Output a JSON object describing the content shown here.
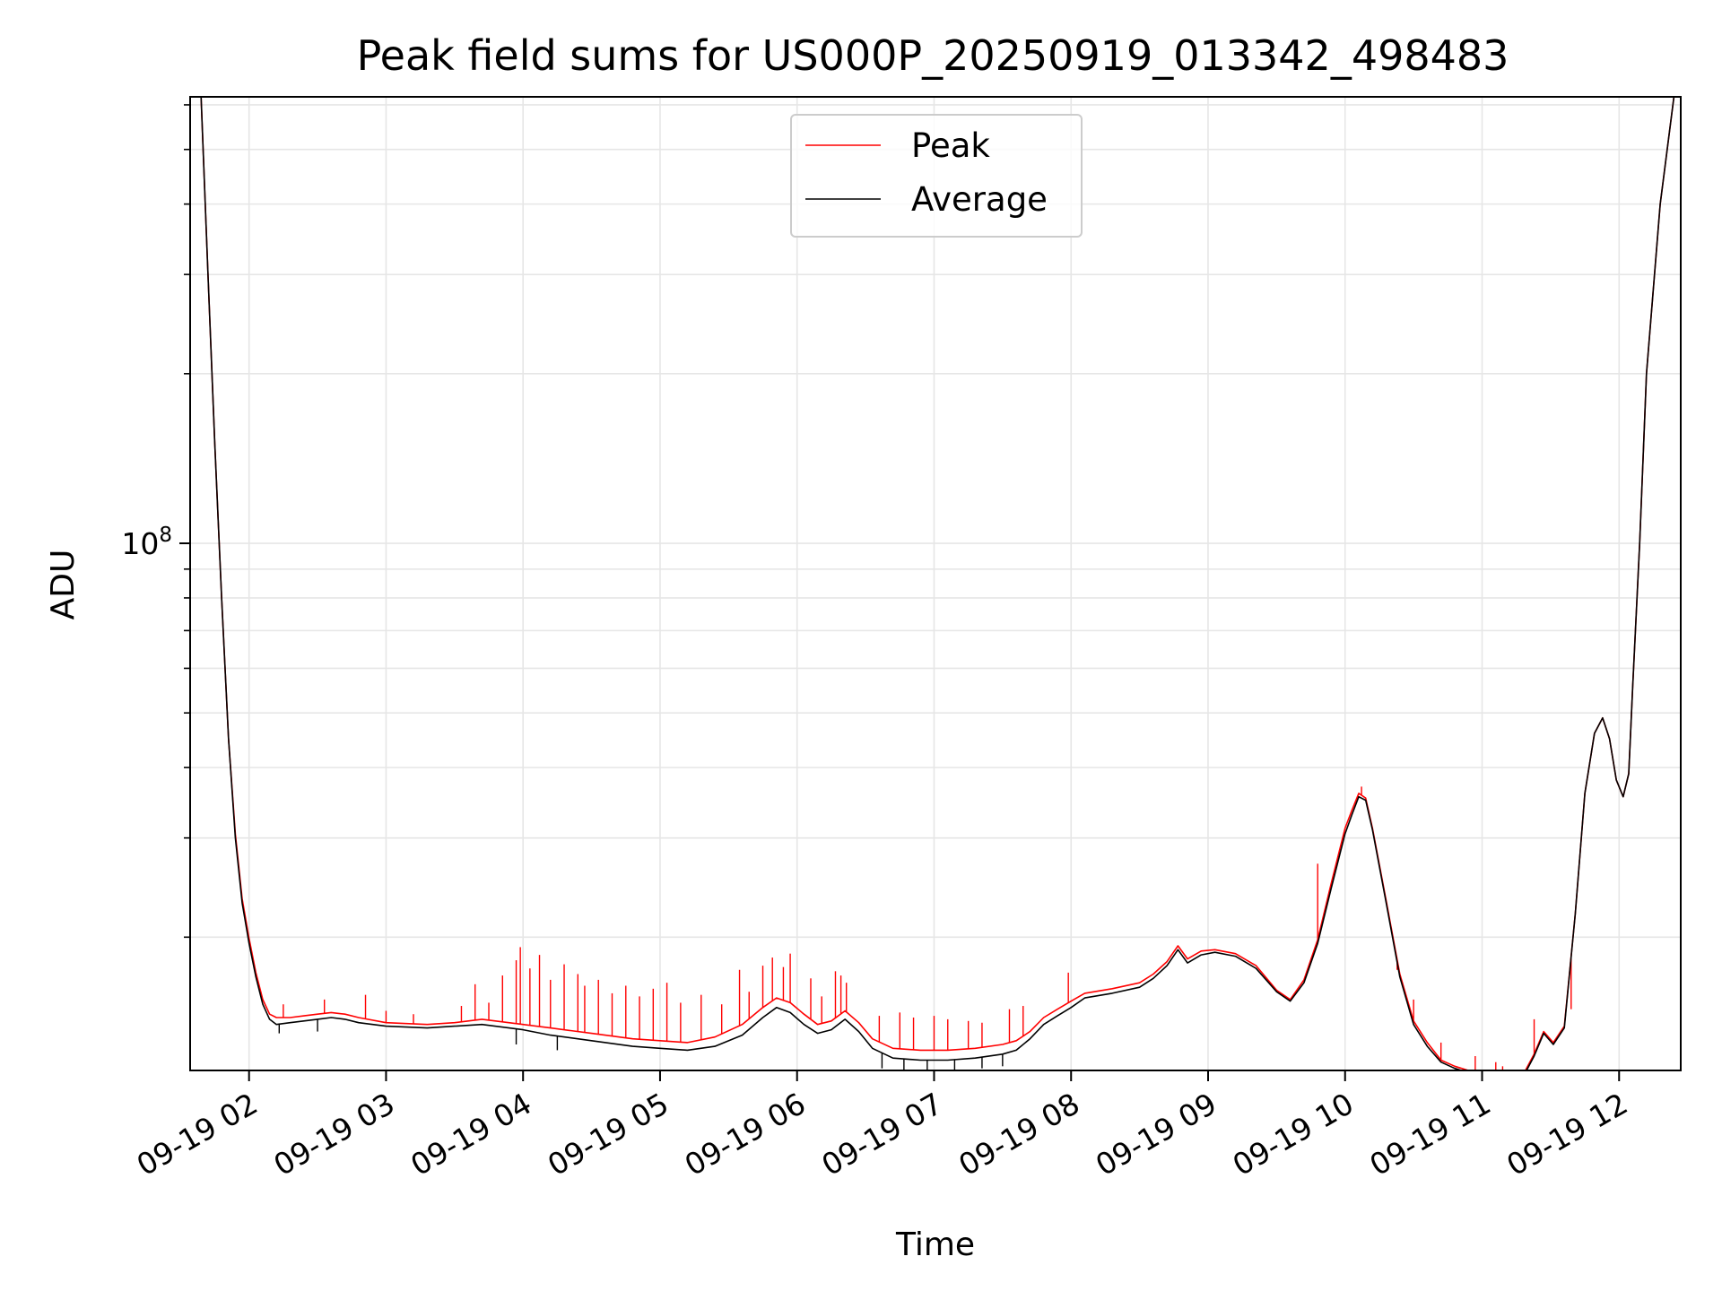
{
  "chart_data": {
    "type": "line",
    "title": "Peak field sums for US000P_20250919_013342_498483",
    "xlabel": "Time",
    "ylabel": "ADU",
    "yscale": "log",
    "ylim": [
      11600000.0,
      620000000.0
    ],
    "xlim_hours": [
      1.57,
      12.45
    ],
    "x_ticks": [
      {
        "hour": 2,
        "label": "09-19 02"
      },
      {
        "hour": 3,
        "label": "09-19 03"
      },
      {
        "hour": 4,
        "label": "09-19 04"
      },
      {
        "hour": 5,
        "label": "09-19 05"
      },
      {
        "hour": 6,
        "label": "09-19 06"
      },
      {
        "hour": 7,
        "label": "09-19 07"
      },
      {
        "hour": 8,
        "label": "09-19 08"
      },
      {
        "hour": 9,
        "label": "09-19 09"
      },
      {
        "hour": 10,
        "label": "09-19 10"
      },
      {
        "hour": 11,
        "label": "09-19 11"
      },
      {
        "hour": 12,
        "label": "09-19 12"
      }
    ],
    "y_major_ticks": [
      {
        "value": 100000000,
        "label_base": "10",
        "label_exp": "8"
      }
    ],
    "y_minor_ticks": [
      20000000,
      30000000,
      40000000,
      50000000,
      60000000,
      70000000,
      80000000,
      90000000,
      200000000,
      300000000,
      400000000,
      500000000,
      600000000
    ],
    "grid": true,
    "legend": {
      "position": "top-center",
      "entries": [
        {
          "name": "Peak",
          "color": "#ff0000"
        },
        {
          "name": "Average",
          "color": "#000000"
        }
      ]
    },
    "series": [
      {
        "name": "Average",
        "color": "#000000",
        "x_hours": [
          1.57,
          1.65,
          1.7,
          1.75,
          1.8,
          1.85,
          1.9,
          1.95,
          2.0,
          2.05,
          2.1,
          2.15,
          2.2,
          2.3,
          2.4,
          2.5,
          2.6,
          2.7,
          2.8,
          3.0,
          3.3,
          3.5,
          3.7,
          4.0,
          4.2,
          4.5,
          4.8,
          5.0,
          5.2,
          5.4,
          5.6,
          5.75,
          5.85,
          5.95,
          6.05,
          6.15,
          6.25,
          6.35,
          6.45,
          6.55,
          6.7,
          6.9,
          7.1,
          7.3,
          7.5,
          7.6,
          7.7,
          7.8,
          7.9,
          8.0,
          8.1,
          8.3,
          8.5,
          8.6,
          8.7,
          8.78,
          8.85,
          8.95,
          9.05,
          9.2,
          9.35,
          9.5,
          9.6,
          9.7,
          9.8,
          9.9,
          10.0,
          10.05,
          10.1,
          10.15,
          10.2,
          10.3,
          10.4,
          10.5,
          10.6,
          10.7,
          10.8,
          10.9,
          11.0,
          11.1,
          11.2,
          11.3,
          11.38,
          11.45,
          11.52,
          11.6,
          11.68,
          11.75,
          11.82,
          11.88,
          11.93,
          11.98,
          12.03,
          12.07,
          12.1,
          12.15,
          12.2,
          12.3,
          12.4,
          12.45
        ],
        "values": [
          620000000,
          620000000,
          300000000,
          150000000,
          80000000,
          45000000,
          30000000,
          23000000,
          19500000,
          17000000,
          15200000,
          14300000,
          14000000,
          14100000,
          14200000,
          14300000,
          14400000,
          14300000,
          14100000,
          13900000,
          13800000,
          13900000,
          14000000,
          13700000,
          13400000,
          13100000,
          12800000,
          12700000,
          12600000,
          12800000,
          13400000,
          14400000,
          15000000,
          14700000,
          14000000,
          13500000,
          13700000,
          14300000,
          13600000,
          12700000,
          12200000,
          12100000,
          12100000,
          12200000,
          12400000,
          12600000,
          13200000,
          14000000,
          14500000,
          15000000,
          15600000,
          15900000,
          16300000,
          16900000,
          17800000,
          19000000,
          18000000,
          18600000,
          18800000,
          18500000,
          17600000,
          16000000,
          15400000,
          16600000,
          19500000,
          24500000,
          30500000,
          33000000,
          35500000,
          35000000,
          31000000,
          23000000,
          17000000,
          14000000,
          12800000,
          12000000,
          11700000,
          11500000,
          11300000,
          11200000,
          11160000,
          11300000,
          12300000,
          13500000,
          12900000,
          13800000,
          22000000,
          36000000,
          46000000,
          49000000,
          45000000,
          38000000,
          35500000,
          39000000,
          56000000,
          100000000,
          200000000,
          400000000,
          620000000,
          620000000
        ]
      },
      {
        "name": "Peak",
        "color": "#ff0000",
        "x_hours": [
          1.57,
          1.65,
          1.7,
          1.75,
          1.8,
          1.85,
          1.9,
          1.95,
          2.0,
          2.05,
          2.1,
          2.15,
          2.2,
          2.3,
          2.4,
          2.5,
          2.6,
          2.7,
          2.8,
          3.0,
          3.3,
          3.5,
          3.7,
          4.0,
          4.2,
          4.5,
          4.8,
          5.0,
          5.2,
          5.4,
          5.6,
          5.75,
          5.85,
          5.95,
          6.05,
          6.15,
          6.25,
          6.35,
          6.45,
          6.55,
          6.7,
          6.9,
          7.1,
          7.3,
          7.5,
          7.6,
          7.7,
          7.8,
          7.9,
          8.0,
          8.1,
          8.3,
          8.5,
          8.6,
          8.7,
          8.78,
          8.85,
          8.95,
          9.05,
          9.2,
          9.35,
          9.5,
          9.6,
          9.7,
          9.8,
          9.9,
          10.0,
          10.05,
          10.1,
          10.15,
          10.2,
          10.3,
          10.4,
          10.5,
          10.6,
          10.7,
          10.8,
          10.9,
          11.0,
          11.1,
          11.2,
          11.3,
          11.38,
          11.45,
          11.52,
          11.6,
          11.68,
          11.75,
          11.82,
          11.88,
          11.93,
          11.98,
          12.03,
          12.07,
          12.1,
          12.15,
          12.2,
          12.3,
          12.4,
          12.45
        ],
        "values": [
          620000000,
          620000000,
          300000000,
          150000000,
          80000000,
          45000000,
          30500000,
          23400000,
          19900000,
          17300000,
          15500000,
          14600000,
          14400000,
          14400000,
          14500000,
          14600000,
          14700000,
          14600000,
          14400000,
          14100000,
          14000000,
          14100000,
          14300000,
          14000000,
          13800000,
          13500000,
          13200000,
          13100000,
          13000000,
          13300000,
          14000000,
          15000000,
          15600000,
          15300000,
          14600000,
          14000000,
          14200000,
          14800000,
          14100000,
          13200000,
          12700000,
          12600000,
          12600000,
          12700000,
          12900000,
          13100000,
          13600000,
          14400000,
          14900000,
          15400000,
          15900000,
          16200000,
          16600000,
          17200000,
          18100000,
          19300000,
          18300000,
          18900000,
          19000000,
          18700000,
          17800000,
          16100000,
          15500000,
          16800000,
          19800000,
          25000000,
          31200000,
          33600000,
          36000000,
          35300000,
          31200000,
          23200000,
          17200000,
          14200000,
          13000000,
          12100000,
          11800000,
          11600000,
          11400000,
          11300000,
          11250000,
          11400000,
          12400000,
          13600000,
          13000000,
          13900000,
          22000000,
          36000000,
          46000000,
          49000000,
          45000000,
          38000000,
          35500000,
          39000000,
          56000000,
          100000000,
          200000000,
          400000000,
          620000000,
          620000000
        ]
      }
    ],
    "spikes": {
      "Peak": [
        {
          "hour": 2.25,
          "value": 15200000
        },
        {
          "hour": 2.55,
          "value": 15500000
        },
        {
          "hour": 2.85,
          "value": 15800000
        },
        {
          "hour": 3.0,
          "value": 14800000
        },
        {
          "hour": 3.2,
          "value": 14600000
        },
        {
          "hour": 3.55,
          "value": 15100000
        },
        {
          "hour": 3.65,
          "value": 16500000
        },
        {
          "hour": 3.75,
          "value": 15300000
        },
        {
          "hour": 3.85,
          "value": 17100000
        },
        {
          "hour": 3.95,
          "value": 18200000
        },
        {
          "hour": 3.98,
          "value": 19200000
        },
        {
          "hour": 4.05,
          "value": 17600000
        },
        {
          "hour": 4.12,
          "value": 18600000
        },
        {
          "hour": 4.2,
          "value": 16800000
        },
        {
          "hour": 4.3,
          "value": 17900000
        },
        {
          "hour": 4.4,
          "value": 17200000
        },
        {
          "hour": 4.45,
          "value": 16400000
        },
        {
          "hour": 4.55,
          "value": 16800000
        },
        {
          "hour": 4.65,
          "value": 15900000
        },
        {
          "hour": 4.75,
          "value": 16400000
        },
        {
          "hour": 4.85,
          "value": 15700000
        },
        {
          "hour": 4.95,
          "value": 16200000
        },
        {
          "hour": 5.05,
          "value": 16600000
        },
        {
          "hour": 5.15,
          "value": 15300000
        },
        {
          "hour": 5.3,
          "value": 15800000
        },
        {
          "hour": 5.45,
          "value": 15200000
        },
        {
          "hour": 5.58,
          "value": 17500000
        },
        {
          "hour": 5.65,
          "value": 16000000
        },
        {
          "hour": 5.75,
          "value": 17800000
        },
        {
          "hour": 5.82,
          "value": 18400000
        },
        {
          "hour": 5.9,
          "value": 17700000
        },
        {
          "hour": 5.95,
          "value": 18700000
        },
        {
          "hour": 6.1,
          "value": 16900000
        },
        {
          "hour": 6.18,
          "value": 15700000
        },
        {
          "hour": 6.28,
          "value": 17400000
        },
        {
          "hour": 6.32,
          "value": 17100000
        },
        {
          "hour": 6.36,
          "value": 16600000
        },
        {
          "hour": 6.6,
          "value": 14500000
        },
        {
          "hour": 6.75,
          "value": 14700000
        },
        {
          "hour": 6.85,
          "value": 14400000
        },
        {
          "hour": 7.0,
          "value": 14500000
        },
        {
          "hour": 7.1,
          "value": 14300000
        },
        {
          "hour": 7.25,
          "value": 14200000
        },
        {
          "hour": 7.35,
          "value": 14100000
        },
        {
          "hour": 7.55,
          "value": 14900000
        },
        {
          "hour": 7.65,
          "value": 15100000
        },
        {
          "hour": 7.98,
          "value": 17300000
        },
        {
          "hour": 9.8,
          "value": 27000000
        },
        {
          "hour": 10.12,
          "value": 37000000
        },
        {
          "hour": 10.38,
          "value": 17500000
        },
        {
          "hour": 10.5,
          "value": 15500000
        },
        {
          "hour": 10.7,
          "value": 13000000
        },
        {
          "hour": 10.95,
          "value": 12300000
        },
        {
          "hour": 11.1,
          "value": 12000000
        },
        {
          "hour": 11.15,
          "value": 11800000
        },
        {
          "hour": 11.38,
          "value": 14300000
        },
        {
          "hour": 11.65,
          "value": 14900000
        }
      ],
      "Average": [
        {
          "hour": 2.22,
          "value": 13500000
        },
        {
          "hour": 2.5,
          "value": 13600000
        },
        {
          "hour": 3.95,
          "value": 12900000
        },
        {
          "hour": 4.25,
          "value": 12600000
        },
        {
          "hour": 6.62,
          "value": 11700000
        },
        {
          "hour": 6.78,
          "value": 11600000
        },
        {
          "hour": 6.95,
          "value": 11550000
        },
        {
          "hour": 7.15,
          "value": 11600000
        },
        {
          "hour": 7.35,
          "value": 11700000
        },
        {
          "hour": 7.5,
          "value": 11800000
        }
      ]
    }
  }
}
